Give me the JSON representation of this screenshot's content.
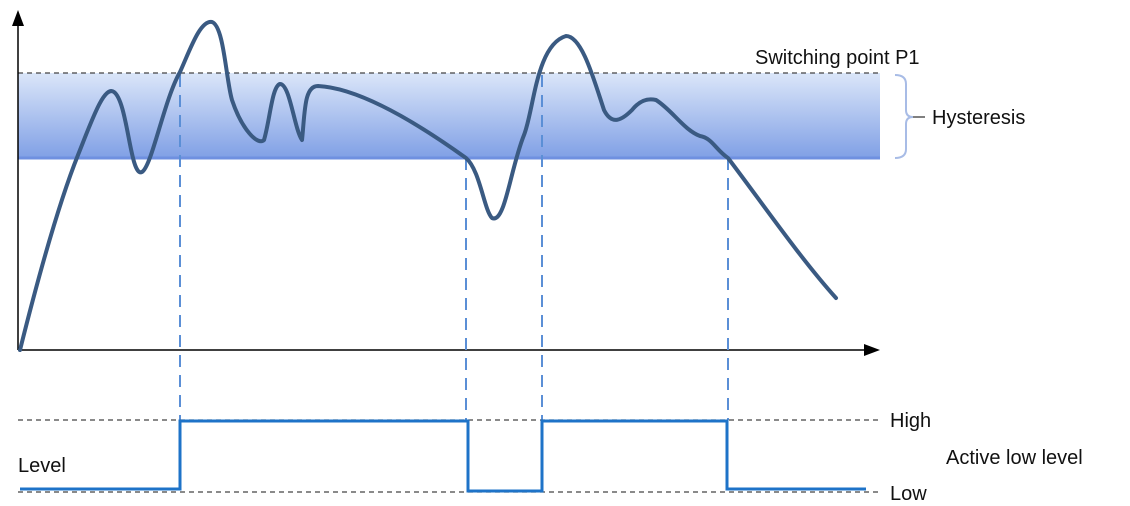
{
  "labels": {
    "switching_point": "Switching point P1",
    "hysteresis": "Hysteresis",
    "level": "Level",
    "high": "High",
    "low": "Low",
    "mode": "Active low level"
  },
  "colors": {
    "band_top": "#dbe6f9",
    "band_bottom": "#7f9fe5",
    "band_edge": "#6f90e0",
    "signal_curve": "#3a5a82",
    "output_line": "#1e73c8",
    "dashed_guide": "#5b8fd6",
    "reference_dash": "#444444",
    "axis": "#000000"
  }
}
